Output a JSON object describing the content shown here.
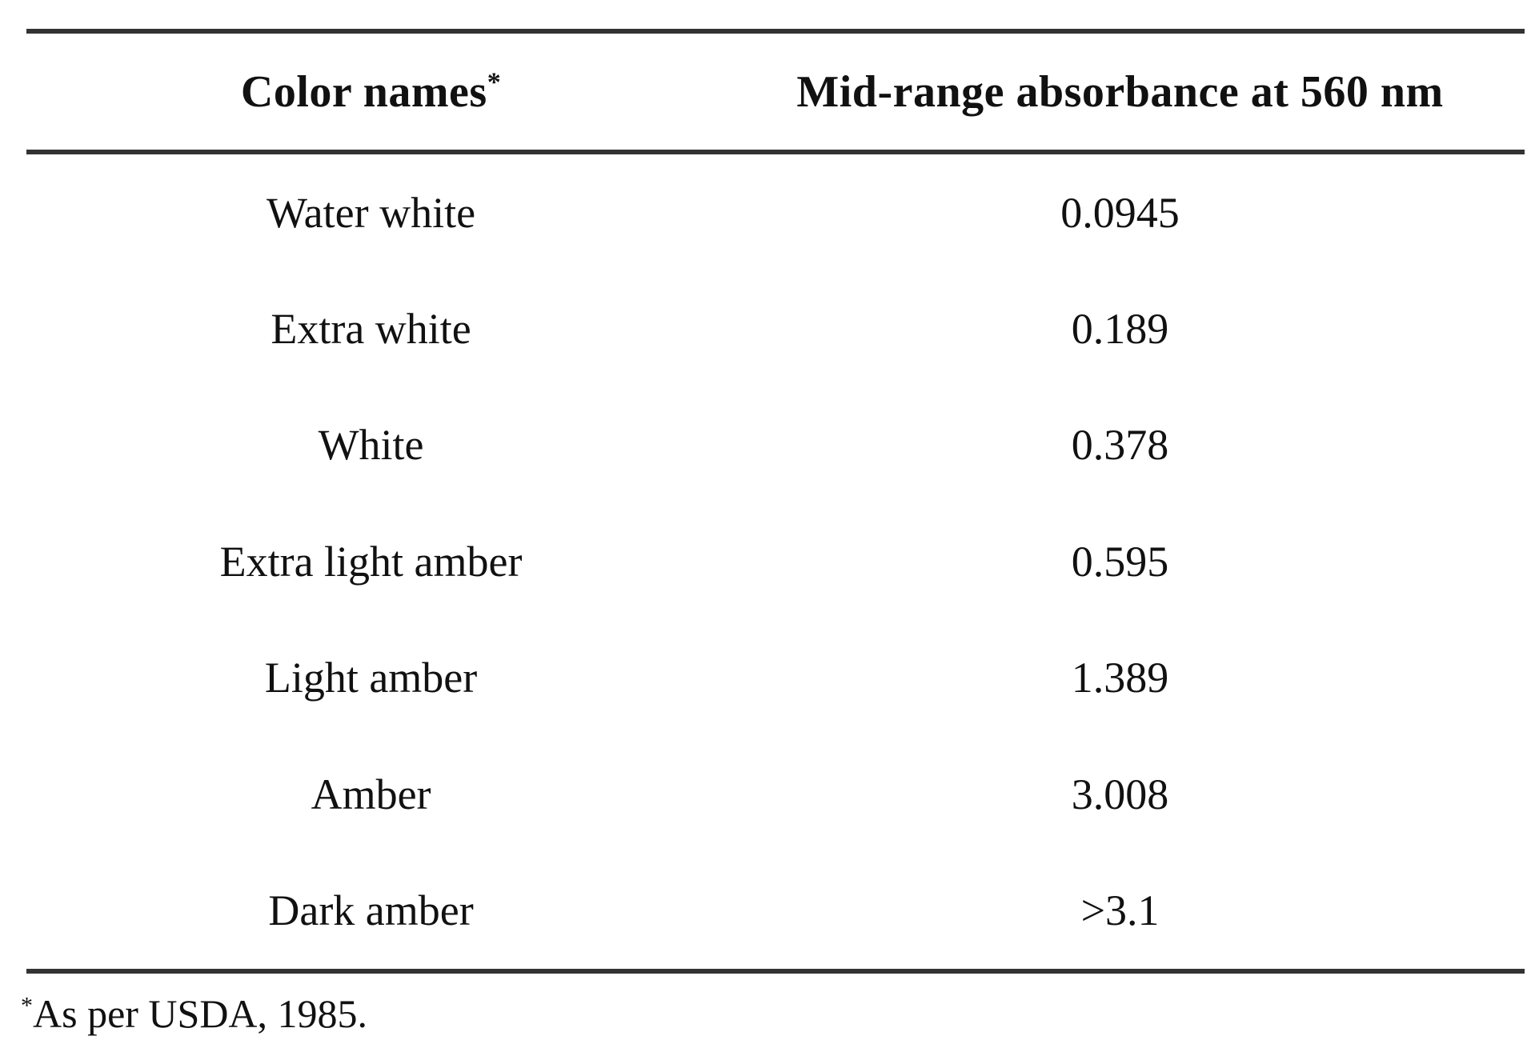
{
  "colors": {
    "background": "#ffffff",
    "text": "#111111",
    "rule": "#333333"
  },
  "table": {
    "headers": [
      {
        "label": "Color names",
        "footnote_marker": "*"
      },
      {
        "label": "Mid-range absorbance at 560 nm"
      }
    ],
    "rows": [
      {
        "color_name": "Water white",
        "absorbance": "0.0945"
      },
      {
        "color_name": "Extra white",
        "absorbance": "0.189"
      },
      {
        "color_name": "White",
        "absorbance": "0.378"
      },
      {
        "color_name": "Extra light amber",
        "absorbance": "0.595"
      },
      {
        "color_name": "Light amber",
        "absorbance": "1.389"
      },
      {
        "color_name": "Amber",
        "absorbance": "3.008"
      },
      {
        "color_name": "Dark amber",
        "absorbance": ">3.1"
      }
    ]
  },
  "footnote": {
    "marker": "*",
    "text": "As per USDA, 1985."
  }
}
